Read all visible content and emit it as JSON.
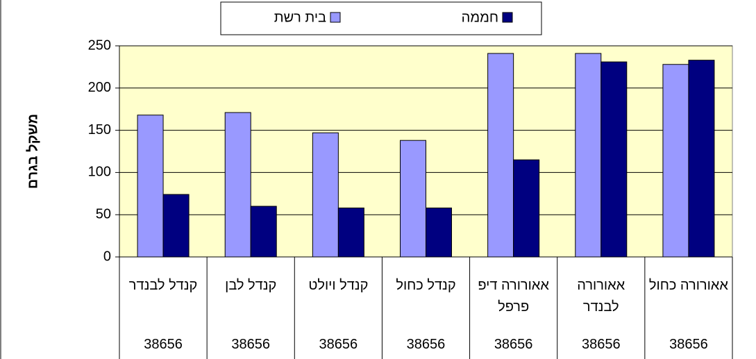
{
  "chart_data": {
    "type": "bar",
    "y_label": "משקל בגרם",
    "categories": [
      "קנדל לבנדר",
      "קנדל לבן",
      "קנדל ויולט",
      "קנדל כחול",
      "אאורורה דיפ פרפל",
      "אאורורה לבנדר",
      "אאורורה כחול"
    ],
    "categories_level2": [
      "38656",
      "38656",
      "38656",
      "38656",
      "38656",
      "38656",
      "38656"
    ],
    "series": [
      {
        "name": "בית רשת",
        "color": "#9999ff",
        "values": [
          168,
          171,
          147,
          138,
          241,
          241,
          228
        ]
      },
      {
        "name": "חממה",
        "color": "#000080",
        "values": [
          74,
          60,
          58,
          58,
          115,
          231,
          233
        ]
      }
    ],
    "ylim": [
      0,
      250
    ],
    "yticks": [
      0,
      50,
      100,
      150,
      200,
      250
    ],
    "grid": true,
    "plot_background": "#ffffcc"
  }
}
